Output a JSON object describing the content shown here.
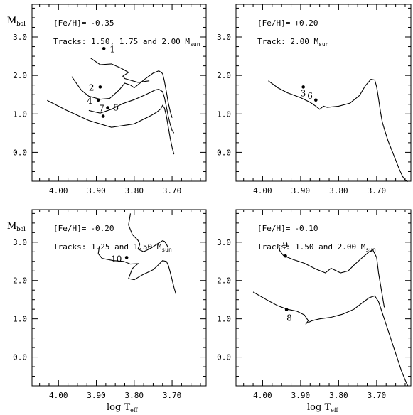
{
  "chart_data": [
    {
      "type": "line",
      "panel": "top-left",
      "annotation": {
        "feh_label": "[Fe/H]=",
        "feh_value": "-0.35",
        "tracks_text": "Tracks: 1.50, 1.75 and 2.00 M",
        "tracks_sub": "sun"
      },
      "ylabel": {
        "main": "M",
        "sub": "bol"
      },
      "xlim": [
        4.07,
        3.61
      ],
      "ylim": [
        3.85,
        -0.75
      ],
      "x_ticks": [
        "4.00",
        "3.90",
        "3.80",
        "3.70"
      ],
      "y_ticks": [
        "0.0",
        "1.0",
        "2.0",
        "3.0"
      ],
      "series": [
        {
          "x": [
            4.03,
            3.98,
            3.92,
            3.86,
            3.8,
            3.755,
            3.74,
            3.73,
            3.725,
            3.72,
            3.715,
            3.71,
            3.705,
            3.7,
            3.695
          ],
          "y": [
            1.35,
            1.1,
            0.83,
            0.65,
            0.74,
            0.96,
            1.05,
            1.13,
            1.22,
            1.15,
            0.94,
            0.66,
            0.37,
            0.13,
            -0.05
          ]
        },
        {
          "x": [
            3.92,
            3.89,
            3.86,
            3.83,
            3.8,
            3.77,
            3.745,
            3.735,
            3.725,
            3.72,
            3.715,
            3.71,
            3.705,
            3.7,
            3.695
          ],
          "y": [
            1.09,
            1.02,
            1.12,
            1.27,
            1.37,
            1.5,
            1.62,
            1.64,
            1.58,
            1.42,
            1.18,
            0.94,
            0.73,
            0.57,
            0.5
          ]
        },
        {
          "x": [
            3.965,
            3.94,
            3.92,
            3.89,
            3.865,
            3.84,
            3.825,
            3.81,
            3.8,
            3.77,
            3.75,
            3.735,
            3.725,
            3.72,
            3.715,
            3.71,
            3.705,
            3.7
          ],
          "y": [
            1.97,
            1.62,
            1.46,
            1.38,
            1.4,
            1.62,
            1.8,
            1.75,
            1.68,
            1.92,
            2.06,
            2.12,
            2.05,
            1.84,
            1.57,
            1.29,
            1.07,
            0.9
          ]
        },
        {
          "x": [
            3.915,
            3.89,
            3.86,
            3.835,
            3.815,
            3.83,
            3.825,
            3.79,
            3.76
          ],
          "y": [
            2.45,
            2.28,
            2.3,
            2.19,
            2.08,
            1.98,
            1.92,
            1.82,
            1.86
          ]
        }
      ],
      "points": [
        {
          "label": "1",
          "x": 3.88,
          "y": 2.7
        },
        {
          "label": "2",
          "x": 3.89,
          "y": 1.7
        },
        {
          "label": "4",
          "x": 3.895,
          "y": 1.36
        },
        {
          "label": "5",
          "x": 3.87,
          "y": 1.16
        },
        {
          "label": "7",
          "x": 3.882,
          "y": 0.94
        }
      ]
    },
    {
      "type": "line",
      "panel": "top-right",
      "annotation": {
        "feh_label": "[Fe/H]=",
        "feh_value": "+0.20",
        "tracks_text": "Track: 2.00 M",
        "tracks_sub": "sun"
      },
      "ylabel": {
        "main": "M",
        "sub": "bol"
      },
      "xlim": [
        4.07,
        3.61
      ],
      "ylim": [
        3.85,
        -0.75
      ],
      "x_ticks": [
        "4.00",
        "3.90",
        "3.80",
        "3.70"
      ],
      "y_ticks": [
        "0.0",
        "1.0",
        "2.0",
        "3.0"
      ],
      "series": [
        {
          "x": [
            3.985,
            3.96,
            3.935,
            3.9,
            3.875,
            3.86,
            3.85,
            3.84,
            3.83,
            3.8,
            3.77,
            3.745,
            3.73,
            3.715,
            3.705,
            3.7,
            3.695,
            3.69,
            3.685,
            3.678,
            3.67,
            3.66,
            3.65,
            3.64,
            3.632,
            3.625,
            3.618
          ],
          "y": [
            1.86,
            1.68,
            1.55,
            1.42,
            1.3,
            1.2,
            1.12,
            1.2,
            1.17,
            1.2,
            1.28,
            1.48,
            1.73,
            1.9,
            1.88,
            1.7,
            1.4,
            1.06,
            0.78,
            0.55,
            0.3,
            0.05,
            -0.2,
            -0.45,
            -0.62,
            -0.72,
            -0.76
          ]
        }
      ],
      "points": [
        {
          "label": "3",
          "x": 3.893,
          "y": 1.7
        },
        {
          "label": "6",
          "x": 3.86,
          "y": 1.36
        }
      ]
    },
    {
      "type": "line",
      "panel": "bottom-left",
      "annotation": {
        "feh_label": "[Fe/H]=",
        "feh_value": "-0.20",
        "tracks_text": "Tracks: 1.25 and 1.50 M",
        "tracks_sub": "sun"
      },
      "ylabel": {
        "main": "M",
        "sub": "bol"
      },
      "xlim": [
        4.07,
        3.61
      ],
      "ylim": [
        3.85,
        -0.75
      ],
      "x_ticks": [
        "4.00",
        "3.90",
        "3.80",
        "3.70"
      ],
      "y_ticks": [
        "0.0",
        "1.0",
        "2.0",
        "3.0"
      ],
      "series": [
        {
          "x": [
            3.892,
            3.895,
            3.885,
            3.855,
            3.828,
            3.81,
            3.79,
            3.805,
            3.815,
            3.8,
            3.78,
            3.75,
            3.735,
            3.725,
            3.715,
            3.71,
            3.705,
            3.7,
            3.695,
            3.69
          ],
          "y": [
            2.9,
            2.7,
            2.58,
            2.52,
            2.5,
            2.43,
            2.44,
            2.31,
            2.05,
            2.02,
            2.14,
            2.28,
            2.42,
            2.52,
            2.5,
            2.4,
            2.22,
            2.02,
            1.82,
            1.65
          ]
        },
        {
          "x": [
            3.81,
            3.815,
            3.805,
            3.79,
            3.785,
            3.79,
            3.775,
            3.755,
            3.74,
            3.725,
            3.72,
            3.715,
            3.71
          ],
          "y": [
            3.75,
            3.45,
            3.2,
            3.05,
            2.95,
            2.82,
            2.75,
            2.85,
            2.95,
            3.04,
            3.02,
            2.95,
            2.85
          ]
        }
      ],
      "points": [
        {
          "label": "10",
          "x": 3.82,
          "y": 2.6
        }
      ]
    },
    {
      "type": "line",
      "panel": "bottom-right",
      "annotation": {
        "feh_label": "[Fe/H]=",
        "feh_value": "-0.10",
        "tracks_text": "Tracks: 1.50 and 2.00 M",
        "tracks_sub": "sun"
      },
      "ylabel": {
        "main": "M",
        "sub": "bol"
      },
      "xaxis_label": {
        "main": "log T",
        "sub": "eff"
      },
      "xlim": [
        4.07,
        3.61
      ],
      "ylim": [
        3.85,
        -0.75
      ],
      "x_ticks": [
        "4.00",
        "3.90",
        "3.80",
        "3.70"
      ],
      "y_ticks": [
        "0.0",
        "1.0",
        "2.0",
        "3.0"
      ],
      "series": [
        {
          "x": [
            4.025,
            3.99,
            3.96,
            3.935,
            3.91,
            3.89,
            3.88,
            3.885,
            3.87,
            3.85,
            3.82,
            3.79,
            3.76,
            3.74,
            3.72,
            3.705,
            3.695,
            3.685,
            3.675,
            3.665,
            3.655,
            3.645,
            3.635,
            3.625,
            3.618
          ],
          "y": [
            1.7,
            1.5,
            1.34,
            1.25,
            1.2,
            1.1,
            0.95,
            0.88,
            0.95,
            1.0,
            1.04,
            1.12,
            1.25,
            1.4,
            1.55,
            1.6,
            1.45,
            1.15,
            0.85,
            0.55,
            0.25,
            -0.05,
            -0.35,
            -0.6,
            -0.75
          ]
        },
        {
          "x": [
            3.958,
            3.955,
            3.945,
            3.92,
            3.89,
            3.86,
            3.835,
            3.82,
            3.795,
            3.775,
            3.76,
            3.74,
            3.72,
            3.71,
            3.7,
            3.695,
            3.685,
            3.68
          ],
          "y": [
            2.95,
            2.78,
            2.65,
            2.55,
            2.45,
            2.3,
            2.2,
            2.32,
            2.2,
            2.25,
            2.4,
            2.58,
            2.75,
            2.8,
            2.6,
            2.2,
            1.6,
            1.3
          ]
        }
      ],
      "points": [
        {
          "label": "8",
          "x": 3.937,
          "y": 1.24
        },
        {
          "label": "9",
          "x": 3.94,
          "y": 2.64
        }
      ]
    }
  ]
}
